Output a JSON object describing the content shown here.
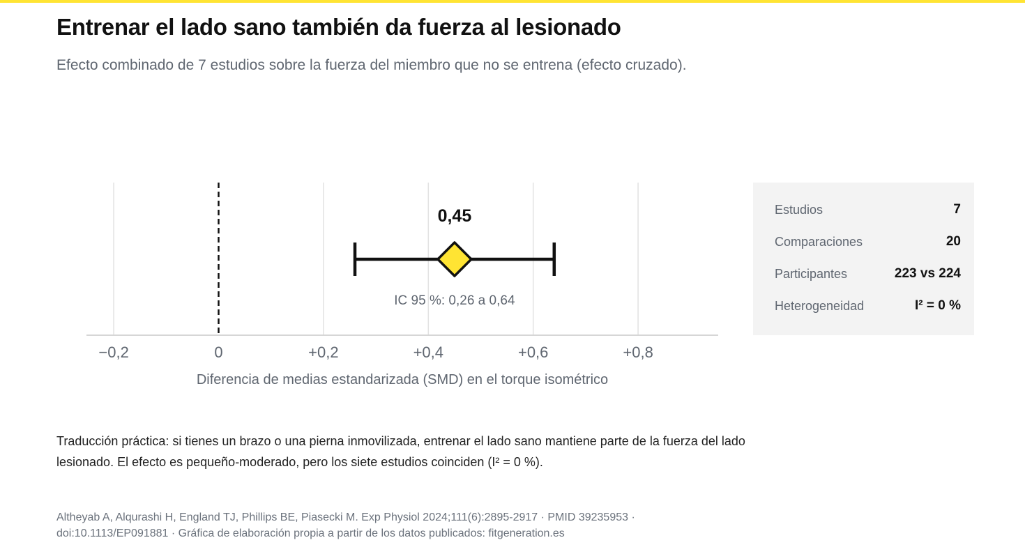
{
  "header": {
    "title": "Entrenar el lado sano también da fuerza al lesionado",
    "subtitle": "Efecto combinado de 7 estudios sobre la fuerza del miembro que no se entrena (efecto cruzado)."
  },
  "chart_data": {
    "type": "forest",
    "estimate": 0.45,
    "estimate_label": "0,45",
    "ci": [
      0.26,
      0.64
    ],
    "ci_label": "IC 95 %: 0,26 a 0,64",
    "null_line": 0,
    "xlim": [
      -0.3,
      0.93
    ],
    "xticks": [
      -0.2,
      0,
      0.2,
      0.4,
      0.6,
      0.8
    ],
    "xtick_labels": [
      "−0,2",
      "0",
      "+0,2",
      "+0,4",
      "+0,6",
      "+0,8"
    ],
    "xlabel": "Diferencia de medias estandarizada (SMD) en el torque isométrico",
    "grid": true
  },
  "stats": [
    {
      "label": "Estudios",
      "value": "7"
    },
    {
      "label": "Comparaciones",
      "value": "20"
    },
    {
      "label": "Participantes",
      "value": "223 vs 224"
    },
    {
      "label": "Heterogeneidad",
      "value": "I² = 0 %"
    }
  ],
  "note": "Traducción práctica: si tienes un brazo o una pierna inmovilizada, entrenar el lado sano mantiene parte de la fuerza del lado lesionado. El efecto es pequeño-moderado, pero los siete estudios coinciden (I² = 0 %).",
  "source": "Altheyab A, Alqurashi H, England TJ, Phillips BE, Piasecki M. Exp Physiol 2024;111(6):2895-2917 · PMID 39235953 · doi:10.1113/EP091881 · Gráfica de elaboración propia a partir de los datos publicados: fitgeneration.es",
  "colors": {
    "accent": "#ffe433",
    "text": "#111111",
    "muted": "#5f6670",
    "grid": "#e2e2e2",
    "panel": "#f3f3f3"
  }
}
